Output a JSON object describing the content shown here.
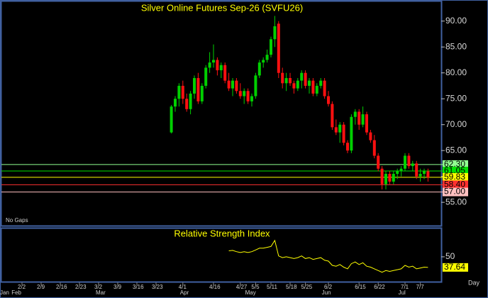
{
  "chart_data": [
    {
      "type": "candlestick",
      "title": "Silver Online Futures Sep-26 (SVFU26)",
      "note": "No Gaps",
      "categories": [
        null,
        null,
        null,
        null,
        null,
        "2/2",
        null,
        null,
        null,
        null,
        "2/9",
        null,
        null,
        null,
        null,
        "2/16",
        null,
        null,
        null,
        null,
        "2/23",
        null,
        null,
        null,
        null,
        "3/2",
        null,
        null,
        null,
        null,
        "3/9",
        null,
        null,
        null,
        null,
        "3/16",
        null,
        null,
        null,
        null,
        "3/23",
        null,
        null,
        null,
        null,
        null,
        null,
        "4/1",
        null,
        null,
        null,
        null,
        null,
        null,
        null,
        "4/16",
        null,
        null,
        null,
        null,
        null,
        null,
        "4/27",
        null,
        null,
        null,
        "5/5",
        null,
        null,
        null,
        "5/11",
        null,
        null,
        null,
        null,
        "5/18",
        null,
        null,
        null,
        "5/25",
        null,
        null,
        null,
        null,
        null,
        "6/2",
        null,
        null,
        null,
        null,
        null,
        null,
        null,
        "6/15",
        null,
        null,
        null,
        null,
        "6/22",
        null,
        null,
        null,
        null,
        null,
        null,
        "7/1",
        null,
        null,
        null,
        "7/7",
        null,
        null,
        null,
        null,
        null
      ],
      "months": [
        "Jan",
        null,
        null,
        "Feb",
        null,
        null,
        null,
        null,
        null,
        null,
        null,
        null,
        null,
        null,
        null,
        null,
        null,
        null,
        null,
        null,
        null,
        null,
        null,
        null,
        null,
        "Mar",
        null,
        null,
        null,
        null,
        null,
        null,
        null,
        null,
        null,
        null,
        null,
        null,
        null,
        null,
        null,
        null,
        null,
        null,
        null,
        null,
        null,
        "Apr",
        null,
        null,
        null,
        null,
        null,
        null,
        null,
        null,
        null,
        null,
        null,
        null,
        null,
        null,
        null,
        null,
        "May",
        null,
        null,
        null,
        null,
        null,
        null,
        null,
        null,
        null,
        null,
        null,
        null,
        null,
        null,
        null,
        null,
        null,
        null,
        null,
        "Jun",
        null,
        null,
        null,
        null,
        null,
        null,
        null,
        null,
        null,
        null,
        null,
        null,
        null,
        null,
        null,
        null,
        null,
        null,
        null,
        "Jul",
        null,
        null,
        null,
        null,
        null,
        null,
        null,
        null,
        null,
        null
      ],
      "open": [
        null,
        null,
        null,
        null,
        null,
        null,
        null,
        null,
        null,
        null,
        null,
        null,
        null,
        null,
        null,
        null,
        null,
        null,
        null,
        null,
        null,
        null,
        null,
        null,
        null,
        null,
        null,
        null,
        null,
        null,
        null,
        null,
        null,
        null,
        null,
        null,
        null,
        null,
        null,
        null,
        null,
        null,
        null,
        null,
        68.5,
        73.5,
        75,
        77.5,
        75,
        73,
        76,
        79,
        74.5,
        77.5,
        81,
        82,
        82.5,
        80.5,
        81.5,
        78.5,
        77,
        78.5,
        76.5,
        75.5,
        76.5,
        74.5,
        75.5,
        79.5,
        82,
        82.5,
        83.5,
        86.5,
        89.5,
        80,
        78,
        79,
        78,
        77,
        78.5,
        80,
        77.5,
        78.5,
        76,
        77.5,
        78.5,
        75.5,
        74,
        69.5,
        68.5,
        70,
        66.5,
        65,
        71.5,
        72.5,
        70,
        72,
        68.5,
        67,
        64,
        61.5,
        58.5,
        60.5,
        59,
        60.5,
        61,
        61.5,
        64,
        62,
        62.5,
        60,
        60.5,
        61,
        null,
        null,
        null
      ],
      "high": [
        null,
        null,
        null,
        null,
        null,
        null,
        null,
        null,
        null,
        null,
        null,
        null,
        null,
        null,
        null,
        null,
        null,
        null,
        null,
        null,
        null,
        null,
        null,
        null,
        null,
        null,
        null,
        null,
        null,
        null,
        null,
        null,
        null,
        null,
        null,
        null,
        null,
        null,
        null,
        null,
        null,
        null,
        null,
        null,
        73.8,
        75.5,
        78,
        78.5,
        76,
        76.5,
        79.5,
        80,
        78,
        81.5,
        84,
        85.5,
        83,
        82,
        82,
        80,
        79,
        79,
        78,
        77,
        77,
        76,
        80,
        82.5,
        83,
        84.5,
        87,
        91,
        90,
        81,
        80,
        80,
        78.5,
        79,
        80.5,
        80.5,
        79,
        79,
        78,
        79,
        79,
        76.5,
        74.5,
        71,
        70.5,
        70.5,
        67,
        72,
        73,
        73,
        73.5,
        72.5,
        69,
        68,
        64.5,
        62,
        61,
        61,
        61,
        61.5,
        62,
        64.5,
        64.5,
        63,
        63,
        61.5,
        61.5,
        61.5,
        null,
        null,
        null
      ],
      "low": [
        null,
        null,
        null,
        null,
        null,
        null,
        null,
        null,
        null,
        null,
        null,
        null,
        null,
        null,
        null,
        null,
        null,
        null,
        null,
        null,
        null,
        null,
        null,
        null,
        null,
        null,
        null,
        null,
        null,
        null,
        null,
        null,
        null,
        null,
        null,
        null,
        null,
        null,
        null,
        null,
        null,
        null,
        null,
        null,
        68.3,
        72.5,
        73.5,
        74,
        72.5,
        72,
        75,
        74,
        74,
        77,
        80,
        81,
        79.5,
        79,
        78,
        76.5,
        75.5,
        76,
        75,
        74,
        74,
        73.5,
        75,
        79,
        81,
        82,
        83,
        85,
        79,
        77,
        76.5,
        77.5,
        76,
        76.5,
        77,
        77,
        76,
        75.5,
        75.5,
        77,
        75,
        73.5,
        69,
        68,
        66.5,
        66,
        64.5,
        64.5,
        70,
        69,
        69.5,
        68,
        66.5,
        63.5,
        61,
        57.5,
        57.5,
        58.5,
        58.5,
        59.5,
        60,
        61,
        61.5,
        61,
        59.5,
        59,
        59.5,
        59,
        null,
        null,
        null
      ],
      "close": [
        null,
        null,
        null,
        null,
        null,
        null,
        null,
        null,
        null,
        null,
        null,
        null,
        null,
        null,
        null,
        null,
        null,
        null,
        null,
        null,
        null,
        null,
        null,
        null,
        null,
        null,
        null,
        null,
        null,
        null,
        null,
        null,
        null,
        null,
        null,
        null,
        null,
        null,
        null,
        null,
        null,
        null,
        null,
        null,
        73.5,
        75,
        77.5,
        75,
        73,
        76,
        79,
        74.5,
        77.5,
        81,
        82,
        82.5,
        80.5,
        81.5,
        78.5,
        77,
        78.5,
        76.5,
        75.5,
        76.5,
        74.5,
        75.5,
        79.5,
        82,
        82.5,
        83.5,
        86.5,
        89,
        80,
        78,
        79,
        78,
        77,
        78.5,
        80,
        77.5,
        78.5,
        76,
        77.5,
        78.5,
        75.5,
        74,
        69.5,
        68.5,
        70,
        66.5,
        65,
        71.5,
        72.5,
        70,
        72,
        68.5,
        67,
        64,
        61.5,
        58.5,
        60.5,
        59,
        60.5,
        61,
        61.5,
        64,
        62,
        62.5,
        60,
        60.5,
        61,
        59.83,
        null,
        null,
        null
      ],
      "up_color": "#00d000",
      "down_color": "#ff1010",
      "ylim": [
        50.5,
        93.8
      ],
      "yticks": [
        {
          "value": 90,
          "label": "90.00"
        },
        {
          "value": 85,
          "label": "85.00"
        },
        {
          "value": 80,
          "label": "80.00"
        },
        {
          "value": 75,
          "label": "75.00"
        },
        {
          "value": 70,
          "label": "70.00"
        },
        {
          "value": 65,
          "label": "65.00"
        },
        {
          "value": 60,
          "label": "60.00"
        },
        {
          "value": 55,
          "label": "55.00"
        }
      ],
      "levels": [
        {
          "value": 62.3,
          "label": "62.30",
          "color": "#90ff90"
        },
        {
          "value": 61.05,
          "color": "#00e000"
        },
        {
          "value": 59.83,
          "color": "#ffff00"
        },
        {
          "value": 58.4,
          "label": "58.40",
          "color": "#ff3030"
        },
        {
          "value": 57,
          "label": "57.00",
          "color": "#ffc0c0"
        }
      ]
    },
    {
      "type": "line",
      "title": "Relative Strength Index",
      "xlabel": "Day",
      "color": "#ffff00",
      "values": [
        null,
        null,
        null,
        null,
        null,
        null,
        null,
        null,
        null,
        null,
        null,
        null,
        null,
        null,
        null,
        null,
        null,
        null,
        null,
        null,
        null,
        null,
        null,
        null,
        null,
        null,
        null,
        null,
        null,
        null,
        null,
        null,
        null,
        null,
        null,
        null,
        null,
        null,
        null,
        null,
        null,
        null,
        null,
        null,
        null,
        null,
        null,
        null,
        null,
        null,
        null,
        null,
        null,
        null,
        null,
        null,
        null,
        null,
        null,
        57,
        57.5,
        56,
        55,
        56,
        55,
        56,
        58,
        60,
        60,
        61,
        62,
        69,
        51,
        49,
        50,
        49,
        48,
        49,
        51,
        48,
        49,
        47,
        48,
        49,
        46,
        45,
        40,
        39,
        41,
        38,
        36,
        42,
        44,
        41,
        43,
        39,
        38,
        36,
        34,
        32,
        34,
        33,
        34,
        35,
        36,
        40,
        38,
        39,
        36,
        37,
        38,
        37.64,
        null,
        null,
        null
      ],
      "ylim": [
        20.2,
        83
      ],
      "yticks": [
        50
      ]
    }
  ]
}
